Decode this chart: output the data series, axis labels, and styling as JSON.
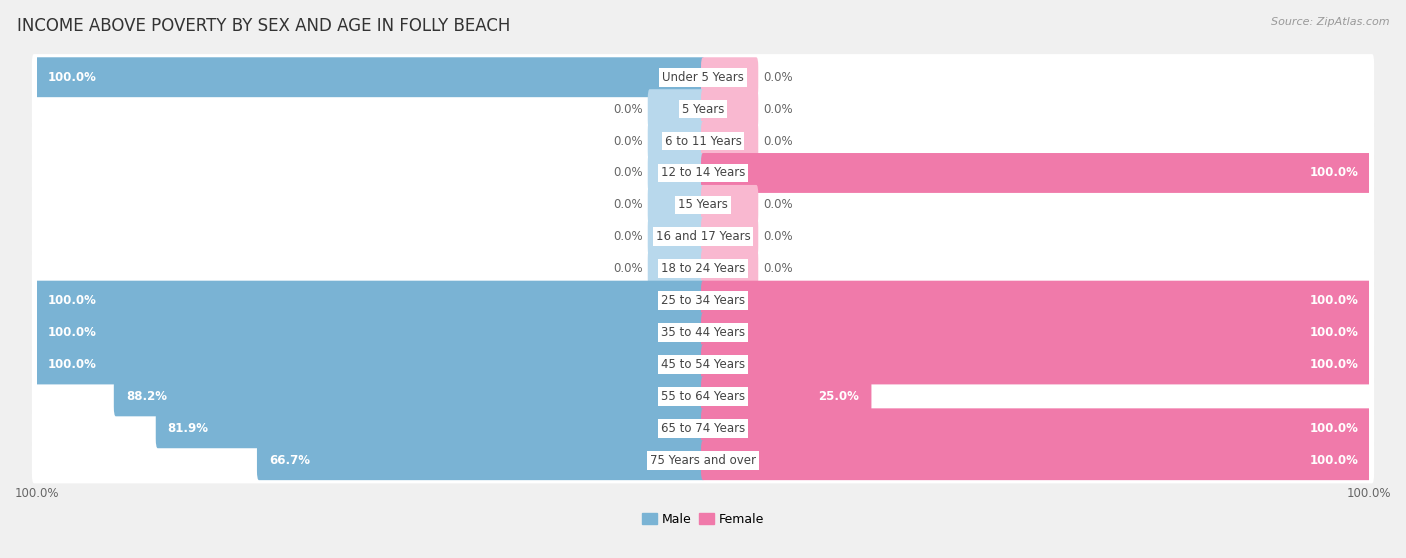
{
  "title": "INCOME ABOVE POVERTY BY SEX AND AGE IN FOLLY BEACH",
  "source": "Source: ZipAtlas.com",
  "categories": [
    "Under 5 Years",
    "5 Years",
    "6 to 11 Years",
    "12 to 14 Years",
    "15 Years",
    "16 and 17 Years",
    "18 to 24 Years",
    "25 to 34 Years",
    "35 to 44 Years",
    "45 to 54 Years",
    "55 to 64 Years",
    "65 to 74 Years",
    "75 Years and over"
  ],
  "male_values": [
    100.0,
    0.0,
    0.0,
    0.0,
    0.0,
    0.0,
    0.0,
    100.0,
    100.0,
    100.0,
    88.2,
    81.9,
    66.7
  ],
  "female_values": [
    0.0,
    0.0,
    0.0,
    100.0,
    0.0,
    0.0,
    0.0,
    100.0,
    100.0,
    100.0,
    25.0,
    100.0,
    100.0
  ],
  "male_color": "#7ab3d4",
  "female_color": "#f07aaa",
  "male_color_light": "#b8d8ec",
  "female_color_light": "#f9b8d0",
  "male_label": "Male",
  "female_label": "Female",
  "background_color": "#f0f0f0",
  "bar_background": "#ffffff",
  "title_fontsize": 12,
  "source_fontsize": 8,
  "value_fontsize": 8.5,
  "cat_fontsize": 8.5,
  "legend_fontsize": 9,
  "max_value": 100.0
}
